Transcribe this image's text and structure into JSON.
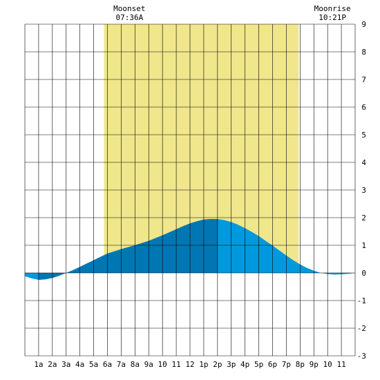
{
  "chart_data": {
    "type": "area",
    "x_unit": "hour",
    "xlim": [
      0,
      24
    ],
    "ylim": [
      -3,
      9
    ],
    "y_ticks": [
      "9",
      "8",
      "7",
      "6",
      "5",
      "4",
      "3",
      "2",
      "1",
      "0",
      "-1",
      "-2",
      "-3"
    ],
    "x_tick_labels": [
      "1a",
      "2a",
      "3a",
      "4a",
      "5a",
      "6a",
      "7a",
      "8a",
      "9a",
      "10",
      "11",
      "12",
      "1p",
      "2p",
      "3p",
      "4p",
      "5p",
      "6p",
      "7p",
      "8p",
      "9p",
      "10",
      "11"
    ],
    "daylight": {
      "start": 5.75,
      "end": 19.9
    },
    "moon_events": [
      {
        "label": "Moonset",
        "time": "07:36A",
        "hour": 7.6
      },
      {
        "label": "Moonrise",
        "time": "10:21P",
        "hour": 22.35
      }
    ],
    "tide_extremes": [
      {
        "type": "low",
        "hour": 0.9,
        "value": -0.25
      },
      {
        "type": "high",
        "hour": 14.0,
        "value": 1.95
      },
      {
        "type": "low",
        "hour": 23.5,
        "value": -0.05
      }
    ],
    "series": [
      {
        "x": [
          0,
          0.5,
          1,
          1.5,
          2,
          2.5,
          3,
          3.5,
          4,
          4.5,
          5,
          5.5,
          6,
          6.5,
          7,
          7.5,
          8,
          8.5,
          9,
          9.5,
          10,
          10.5,
          11,
          11.5,
          12,
          12.5,
          13,
          13.5,
          14,
          14.5,
          15,
          15.5,
          16,
          16.5,
          17,
          17.5,
          18,
          18.5,
          19,
          19.5,
          20,
          20.5,
          21,
          21.5,
          22,
          22.5,
          23,
          23.5,
          24
        ],
        "y": [
          -0.12,
          -0.2,
          -0.25,
          -0.23,
          -0.18,
          -0.1,
          0.0,
          0.1,
          0.22,
          0.34,
          0.46,
          0.58,
          0.7,
          0.78,
          0.86,
          0.93,
          1.0,
          1.08,
          1.16,
          1.26,
          1.36,
          1.47,
          1.58,
          1.69,
          1.79,
          1.87,
          1.93,
          1.95,
          1.95,
          1.91,
          1.84,
          1.74,
          1.62,
          1.48,
          1.33,
          1.16,
          0.99,
          0.81,
          0.63,
          0.46,
          0.31,
          0.18,
          0.08,
          0.0,
          -0.04,
          -0.06,
          -0.05,
          -0.03,
          0.0
        ]
      }
    ],
    "colors": {
      "daylight": "#f0e68c",
      "tide": "#0099dd",
      "tide_dark": "#0077b3",
      "grid": "#000000"
    }
  }
}
